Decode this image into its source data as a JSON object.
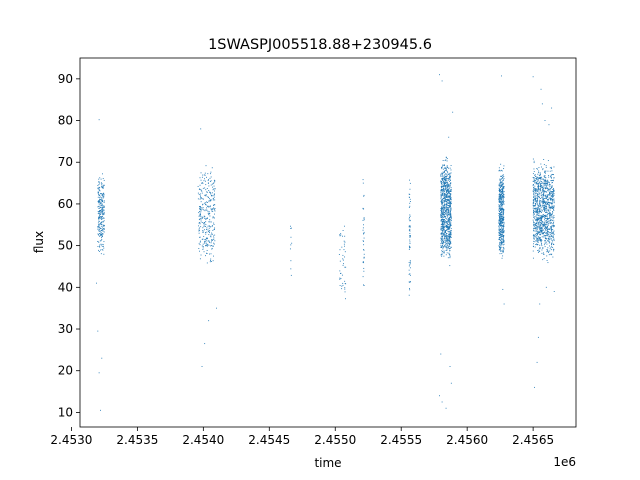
{
  "chart_data": {
    "type": "scatter",
    "title": "1SWASPJ005518.88+230945.6",
    "xlabel": "time",
    "ylabel": "flux",
    "x_offset_label": "1e6",
    "xlim": [
      2.453065,
      2.456825
    ],
    "ylim": [
      6.5,
      95.0
    ],
    "x_ticks": [
      2.453,
      2.4535,
      2.454,
      2.4545,
      2.455,
      2.4555,
      2.456,
      2.4565
    ],
    "x_tick_labels": [
      "2.4530",
      "2.4535",
      "2.4540",
      "2.4545",
      "2.4550",
      "2.4555",
      "2.4560",
      "2.4565"
    ],
    "y_ticks": [
      10,
      20,
      30,
      40,
      50,
      60,
      70,
      80,
      90
    ],
    "y_tick_labels": [
      "10",
      "20",
      "30",
      "40",
      "50",
      "60",
      "70",
      "80",
      "90"
    ],
    "grid": false,
    "marker_color": "#1f77b4",
    "clusters": [
      {
        "x_range": [
          2.4532,
          2.45325
        ],
        "y_range": [
          46,
          69
        ],
        "points": 260
      },
      {
        "x_range": [
          2.45396,
          2.45409
        ],
        "y_range": [
          44,
          71
        ],
        "points": 320
      },
      {
        "x_range": [
          2.45466,
          2.45467
        ],
        "y_range": [
          40,
          58
        ],
        "points": 10
      },
      {
        "x_range": [
          2.45503,
          2.45508
        ],
        "y_range": [
          33,
          58
        ],
        "points": 45
      },
      {
        "x_range": [
          2.45521,
          2.45522
        ],
        "y_range": [
          33,
          69
        ],
        "points": 35
      },
      {
        "x_range": [
          2.45556,
          2.45557
        ],
        "y_range": [
          32,
          70
        ],
        "points": 60
      },
      {
        "x_range": [
          2.4558,
          2.45588
        ],
        "y_range": [
          44,
          73
        ],
        "points": 900
      },
      {
        "x_range": [
          2.45624,
          2.45628
        ],
        "y_range": [
          45,
          71
        ],
        "points": 500
      },
      {
        "x_range": [
          2.4565,
          2.45666
        ],
        "y_range": [
          45,
          72
        ],
        "points": 1100
      }
    ],
    "outliers": [
      {
        "x": 2.45321,
        "y": 80.2
      },
      {
        "x": 2.45322,
        "y": 10.5
      },
      {
        "x": 2.45321,
        "y": 19.5
      },
      {
        "x": 2.45323,
        "y": 23.0
      },
      {
        "x": 2.4532,
        "y": 29.5
      },
      {
        "x": 2.45319,
        "y": 41.0
      },
      {
        "x": 2.45398,
        "y": 78.0
      },
      {
        "x": 2.45399,
        "y": 21.0
      },
      {
        "x": 2.45401,
        "y": 26.5
      },
      {
        "x": 2.45404,
        "y": 32.0
      },
      {
        "x": 2.4541,
        "y": 35.0
      },
      {
        "x": 2.45579,
        "y": 91.0
      },
      {
        "x": 2.45581,
        "y": 89.5
      },
      {
        "x": 2.45579,
        "y": 14.0
      },
      {
        "x": 2.45581,
        "y": 12.5
      },
      {
        "x": 2.45584,
        "y": 11.0
      },
      {
        "x": 2.45588,
        "y": 17.0
      },
      {
        "x": 2.45587,
        "y": 21.0
      },
      {
        "x": 2.4558,
        "y": 24.0
      },
      {
        "x": 2.45586,
        "y": 76.0
      },
      {
        "x": 2.45589,
        "y": 82.0
      },
      {
        "x": 2.45626,
        "y": 90.7
      },
      {
        "x": 2.45628,
        "y": 36.0
      },
      {
        "x": 2.45627,
        "y": 39.5
      },
      {
        "x": 2.4565,
        "y": 90.5
      },
      {
        "x": 2.45651,
        "y": 16.0
      },
      {
        "x": 2.45653,
        "y": 22.0
      },
      {
        "x": 2.45654,
        "y": 28.0
      },
      {
        "x": 2.45656,
        "y": 87.5
      },
      {
        "x": 2.45657,
        "y": 84.0
      },
      {
        "x": 2.45659,
        "y": 80.0
      },
      {
        "x": 2.45662,
        "y": 79.0
      },
      {
        "x": 2.45664,
        "y": 83.0
      },
      {
        "x": 2.45655,
        "y": 36.0
      },
      {
        "x": 2.4566,
        "y": 40.0
      },
      {
        "x": 2.45666,
        "y": 39.0
      }
    ]
  }
}
